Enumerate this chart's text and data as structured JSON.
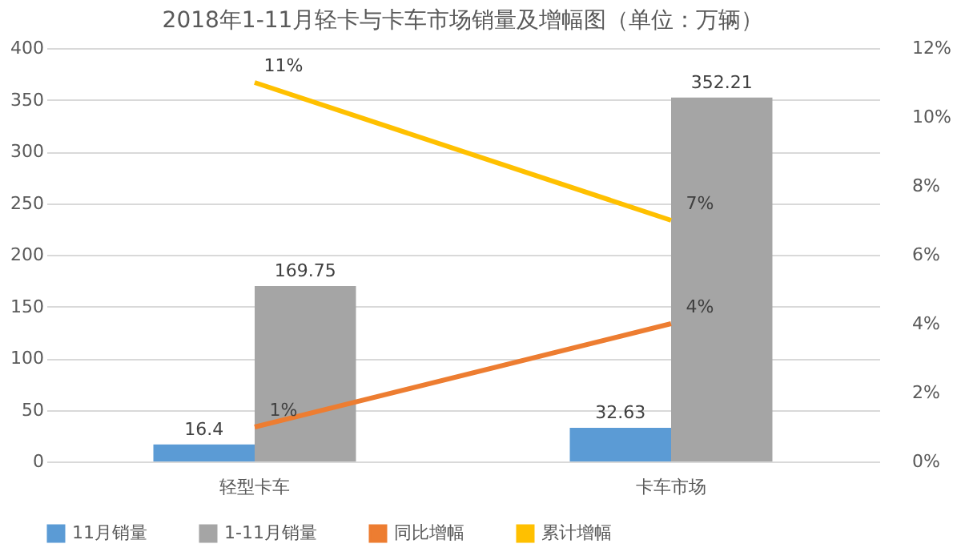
{
  "chart_data": {
    "type": "bar",
    "title": "2018年1-11月轻卡与卡车市场销量及增幅图（单位：万辆）",
    "categories": [
      "轻型卡车",
      "卡车市场"
    ],
    "series": [
      {
        "name": "11月销量",
        "color": "#5b9bd5",
        "values": [
          16.4,
          32.63
        ]
      },
      {
        "name": "1-11月销量",
        "color": "#a5a5a5",
        "values": [
          169.75,
          352.21
        ]
      },
      {
        "name": "同比增幅",
        "color": "#ed7d31",
        "type": "line",
        "axis": "y2",
        "values": [
          1,
          4
        ],
        "value_labels": [
          "1%",
          "4%"
        ]
      },
      {
        "name": "累计增幅",
        "color": "#ffc000",
        "type": "line",
        "axis": "y2",
        "values": [
          11,
          7
        ],
        "value_labels": [
          "11%",
          "7%"
        ]
      }
    ],
    "ylim": [
      0,
      400
    ],
    "yticks": [
      0,
      50,
      100,
      150,
      200,
      250,
      300,
      350,
      400
    ],
    "y2lim": [
      0,
      12
    ],
    "y2ticks": [
      {
        "value": 0,
        "label": "0%"
      },
      {
        "value": 2,
        "label": "2%"
      },
      {
        "value": 4,
        "label": "4%"
      },
      {
        "value": 6,
        "label": "6%"
      },
      {
        "value": 8,
        "label": "8%"
      },
      {
        "value": 10,
        "label": "10%"
      },
      {
        "value": 12,
        "label": "12%"
      }
    ],
    "data_labels": true,
    "grid": "y",
    "legend": "bottom",
    "marker": "none",
    "line_style": "solid"
  }
}
